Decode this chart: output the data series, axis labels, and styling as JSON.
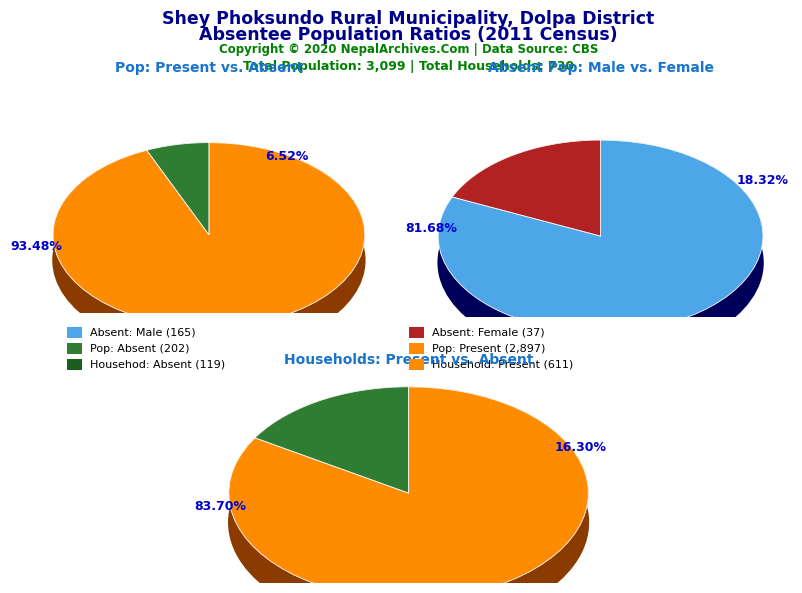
{
  "title_line1": "Shey Phoksundo Rural Municipality, Dolpa District",
  "title_line2": "Absentee Population Ratios (2011 Census)",
  "copyright": "Copyright © 2020 NepalArchives.Com | Data Source: CBS",
  "stats": "Total Population: 3,099 | Total Households: 730",
  "pie1_title": "Pop: Present vs. Absent",
  "pie1_values": [
    93.48,
    6.52
  ],
  "pie1_colors": [
    "#FF8C00",
    "#2E7D32"
  ],
  "pie1_labels": [
    "93.48%",
    "6.52%"
  ],
  "pie1_label_angles": [
    180,
    30
  ],
  "pie2_title": "Absent Pop: Male vs. Female",
  "pie2_values": [
    81.68,
    18.32
  ],
  "pie2_colors": [
    "#4DA6E8",
    "#B22222"
  ],
  "pie2_labels": [
    "81.68%",
    "18.32%"
  ],
  "pie2_label_angles": [
    200,
    45
  ],
  "pie3_title": "Households: Present vs. Absent",
  "pie3_values": [
    83.7,
    16.3
  ],
  "pie3_colors": [
    "#FF8C00",
    "#2E7D32"
  ],
  "pie3_labels": [
    "83.70%",
    "16.30%"
  ],
  "pie3_label_angles": [
    200,
    40
  ],
  "legend_items": [
    {
      "label": "Absent: Male (165)",
      "color": "#4DA6E8"
    },
    {
      "label": "Absent: Female (37)",
      "color": "#B22222"
    },
    {
      "label": "Pop: Absent (202)",
      "color": "#2E7D32"
    },
    {
      "label": "Pop: Present (2,897)",
      "color": "#FF8C00"
    },
    {
      "label": "Househod: Absent (119)",
      "color": "#1B5E20"
    },
    {
      "label": "Household: Present (611)",
      "color": "#FF8C00"
    }
  ],
  "title_color": "#00008B",
  "copyright_color": "#008000",
  "stats_color": "#008000",
  "subtitle_color": "#1874CD",
  "pct_color": "#0000CD",
  "pie1_shadow_color": "#8B3A00",
  "pie2_shadow_color": "#00005A",
  "pie3_shadow_color": "#8B3A00"
}
